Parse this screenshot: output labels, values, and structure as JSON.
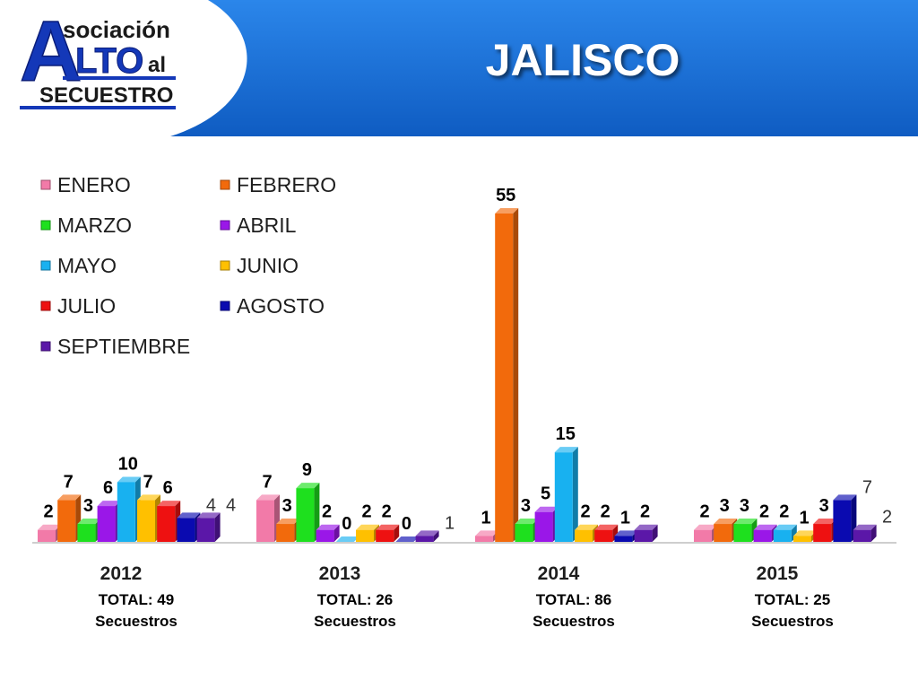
{
  "header": {
    "title": "JALISCO",
    "logo": {
      "line1": "sociación",
      "big_a": "A",
      "big_lto": "LTO",
      "al": "al",
      "line3": "SECUESTRO"
    }
  },
  "colors": {
    "header_blue": "#1a6fd4",
    "ENERO": "#f27aa8",
    "FEBRERO": "#f26a0c",
    "MARZO": "#1ee01e",
    "ABRIL": "#9a17e8",
    "MAYO": "#18b1f0",
    "JUNIO": "#ffc000",
    "JULIO": "#ee1111",
    "AGOSTO": "#0a0ab0",
    "SEPTIEMBRE": "#5b17a8"
  },
  "chart_data": {
    "type": "bar",
    "title": "JALISCO",
    "legend_position": "top-left",
    "categories": [
      "2012",
      "2013",
      "2014",
      "2015"
    ],
    "series": [
      {
        "name": "ENERO",
        "values": [
          2,
          7,
          1,
          2
        ]
      },
      {
        "name": "FEBRERO",
        "values": [
          7,
          3,
          55,
          3
        ]
      },
      {
        "name": "MARZO",
        "values": [
          3,
          9,
          3,
          3
        ]
      },
      {
        "name": "ABRIL",
        "values": [
          6,
          2,
          5,
          2
        ]
      },
      {
        "name": "MAYO",
        "values": [
          10,
          0,
          15,
          2
        ]
      },
      {
        "name": "JUNIO",
        "values": [
          7,
          2,
          2,
          1
        ]
      },
      {
        "name": "JULIO",
        "values": [
          6,
          2,
          2,
          3
        ]
      },
      {
        "name": "AGOSTO",
        "values": [
          4,
          0,
          1,
          7
        ]
      },
      {
        "name": "SEPTIEMBRE",
        "values": [
          4,
          1,
          2,
          2
        ]
      }
    ],
    "data_labels": [
      [
        "2",
        "7",
        "3",
        "6",
        "10",
        "7",
        "6",
        "4",
        "4"
      ],
      [
        "7",
        "3",
        "9",
        "2",
        "0",
        "2",
        "2",
        "0",
        "1"
      ],
      [
        "1",
        "55",
        "3",
        "5",
        "15",
        "2",
        "2",
        "1",
        "2"
      ],
      [
        "2",
        "3",
        "3",
        "2",
        "2",
        "1",
        "3",
        "7",
        "2"
      ]
    ],
    "totals": [
      {
        "total": "TOTAL: 49",
        "unit": "Secuestros"
      },
      {
        "total": "TOTAL: 26",
        "unit": "Secuestros"
      },
      {
        "total": "TOTAL: 86",
        "unit": "Secuestros"
      },
      {
        "total": "TOTAL: 25",
        "unit": "Secuestros"
      }
    ],
    "ylim": [
      0,
      55
    ],
    "grid": false
  }
}
